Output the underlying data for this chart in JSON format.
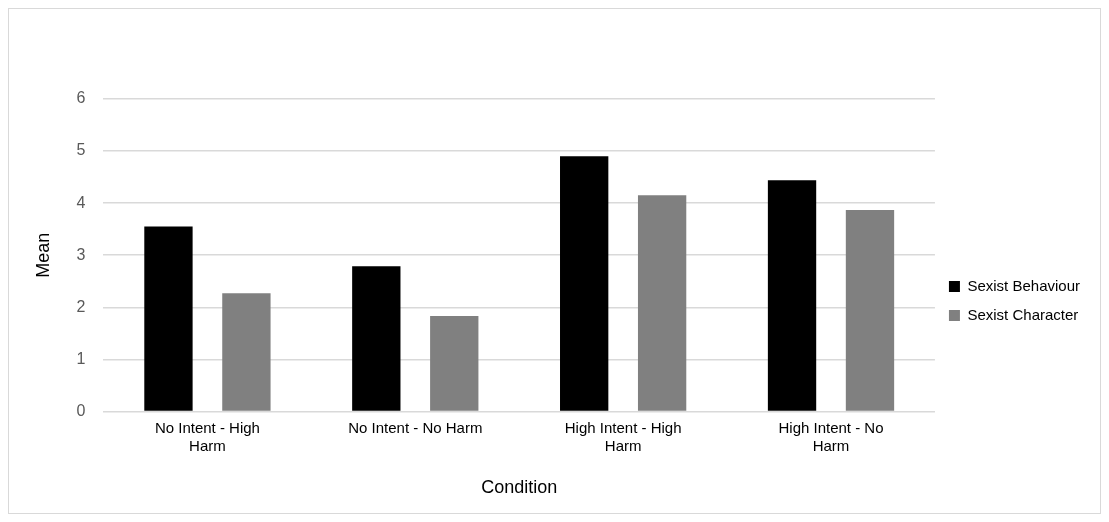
{
  "chart_data": {
    "type": "bar",
    "xlabel": "Condition",
    "ylabel": "Mean",
    "categories": [
      "No Intent - High Harm",
      "No Intent - No Harm",
      "High Intent - High Harm",
      "High Intent - No Harm"
    ],
    "series": [
      {
        "name": "Sexist Behaviour",
        "color": "#000000",
        "values": [
          3.55,
          2.79,
          4.9,
          4.44
        ]
      },
      {
        "name": "Sexist Character",
        "color": "#808080",
        "values": [
          2.27,
          1.83,
          4.15,
          3.87
        ]
      }
    ],
    "ylim": [
      0,
      6
    ],
    "yticks": [
      0,
      1,
      2,
      3,
      4,
      5,
      6
    ],
    "grid": "y",
    "legend": "right"
  }
}
